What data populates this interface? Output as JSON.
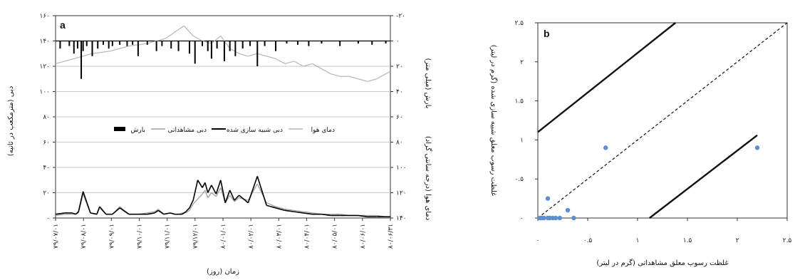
{
  "colors": {
    "observed": "#9e9e9e",
    "simulated": "#000000",
    "temperature": "#b5b5b5",
    "precip": "#000000",
    "scatter_points": "#5b8fd0"
  },
  "chart_data": [
    {
      "type": "line",
      "panel": "a",
      "xlabel": "زمان (روز)",
      "ylabel_left": "دبی (مترمکعب در ثانیه)",
      "ylabel_right": "بارش (میلی متر)",
      "ylabel_right2": "دمای هوا (درجه سانتی گراد)",
      "ylim_left": [
        0,
        140
      ],
      "yticks_left": [
        "۰",
        "۲۰",
        "۴۰",
        "۶۰",
        "۸۰",
        "۱۰۰",
        "۱۲۰",
        "۱۴۰",
        "۱۶۰"
      ],
      "yticks_right": [
        "-۲۰",
        "۰",
        "۲۰",
        "۴۰",
        "۶۰",
        "۸۰",
        "۱۰۰",
        "۱۲۰",
        "۱۴۰"
      ],
      "xticks": [
        "۷۹/۰۷/۰۱",
        "۷۹/۰۸/۰۱",
        "۷۹/۰۹/۰۱",
        "۷۹/۱۰/۰۱",
        "۷۹/۱۱/۰۱",
        "۷۹/۱۲/۰۱",
        "۸۰/۰۱/۰۱",
        "۸۰/۰۲/۰۱",
        "۸۰/۰۳/۰۱",
        "۸۰/۰۴/۰۱",
        "۸۰/۰۵/۰۱",
        "۸۰/۰۶/۰۱",
        "۸۰/۰۶/۳۱"
      ],
      "legend": [
        "بارش",
        "دبی مشاهداتی",
        "دبی شبیه سازی شده",
        "دمای هوا"
      ],
      "series": [
        {
          "name": "دبی مشاهداتی",
          "role": "observed",
          "x": [
            0,
            10,
            18,
            22,
            25,
            30,
            38,
            45,
            48,
            55,
            62,
            70,
            80,
            90,
            100,
            108,
            112,
            118,
            125,
            130,
            135,
            138,
            142,
            146,
            150,
            155,
            160,
            163,
            166,
            170,
            175,
            180,
            185,
            190,
            195,
            200,
            210,
            220,
            230,
            240,
            250,
            260,
            270,
            280,
            290,
            300,
            310,
            320,
            330,
            340,
            350,
            360,
            365
          ],
          "values": [
            2,
            3,
            3,
            3,
            4,
            19,
            4,
            3,
            8,
            3,
            3,
            9,
            3,
            3,
            4,
            5,
            7,
            3,
            4,
            3,
            3,
            4,
            4,
            6,
            11,
            15,
            19,
            22,
            16,
            20,
            17,
            24,
            12,
            18,
            13,
            16,
            14,
            27,
            12,
            9,
            7,
            6,
            5,
            4,
            3,
            3,
            3,
            2,
            2,
            2,
            2,
            1,
            1
          ]
        },
        {
          "name": "دبی شبیه سازی شده",
          "role": "simulated",
          "x": [
            0,
            10,
            18,
            22,
            25,
            30,
            38,
            45,
            48,
            55,
            62,
            70,
            80,
            90,
            100,
            108,
            112,
            118,
            125,
            130,
            135,
            138,
            142,
            146,
            150,
            155,
            160,
            163,
            166,
            170,
            175,
            180,
            185,
            190,
            195,
            200,
            210,
            220,
            230,
            240,
            250,
            260,
            270,
            280,
            290,
            300,
            310,
            320,
            330,
            340,
            350,
            360,
            365
          ],
          "values": [
            3,
            4,
            4,
            3,
            5,
            21,
            4,
            3,
            9,
            3,
            3,
            8,
            3,
            3,
            3,
            4,
            6,
            3,
            4,
            3,
            3,
            3,
            5,
            8,
            14,
            30,
            24,
            28,
            20,
            26,
            19,
            30,
            12,
            22,
            14,
            18,
            12,
            33,
            10,
            8,
            6,
            5,
            4,
            3,
            3,
            2,
            2,
            2,
            2,
            1,
            1,
            1,
            1
          ]
        },
        {
          "name": "دمای هوا",
          "role": "temperature",
          "x": [
            0,
            20,
            40,
            60,
            80,
            100,
            120,
            140,
            150,
            160,
            170,
            180,
            190,
            200,
            210,
            220,
            230,
            240,
            250,
            260,
            270,
            280,
            290,
            300,
            310,
            320,
            330,
            340,
            350,
            360,
            365
          ],
          "values": [
            18,
            14,
            10,
            8,
            4,
            2,
            -2,
            -12,
            -4,
            0,
            2,
            -4,
            6,
            10,
            12,
            10,
            12,
            14,
            18,
            16,
            20,
            18,
            22,
            26,
            28,
            28,
            30,
            32,
            30,
            26,
            24
          ]
        },
        {
          "name": "بارش",
          "role": "precip",
          "x": [
            5,
            15,
            20,
            24,
            28,
            30,
            34,
            40,
            46,
            52,
            58,
            62,
            70,
            78,
            84,
            90,
            100,
            110,
            116,
            126,
            134,
            146,
            152,
            160,
            166,
            170,
            176,
            184,
            190,
            196,
            204,
            212,
            220,
            228,
            240,
            252,
            264,
            276,
            290,
            310,
            330,
            345,
            360
          ],
          "values": [
            6,
            4,
            10,
            6,
            30,
            8,
            4,
            12,
            6,
            3,
            6,
            4,
            3,
            4,
            3,
            12,
            3,
            8,
            4,
            6,
            8,
            10,
            18,
            4,
            8,
            14,
            6,
            16,
            8,
            12,
            6,
            4,
            20,
            4,
            8,
            2,
            3,
            4,
            2,
            4,
            2,
            3,
            2
          ]
        }
      ]
    },
    {
      "type": "scatter",
      "panel": "b",
      "xlabel": "غلظت رسوب معلق مشاهداتی (گرم در لیتر)",
      "ylabel": "غلظت رسوب معلق شبیه سازی شده (گرم در لیتر)",
      "xlim": [
        0,
        2.5
      ],
      "ylim": [
        0,
        2.5
      ],
      "xticks": [
        "۰",
        "۰.۵",
        "۱",
        "۱.۵",
        "۲",
        "۲.۵"
      ],
      "yticks": [
        "۰",
        "۰.۵",
        "۱",
        "۱.۵",
        "۲",
        "۲.۵"
      ],
      "points": [
        {
          "x": 0.02,
          "y": 0.0
        },
        {
          "x": 0.04,
          "y": 0.0
        },
        {
          "x": 0.06,
          "y": 0.0
        },
        {
          "x": 0.1,
          "y": 0.0
        },
        {
          "x": 0.12,
          "y": 0.0
        },
        {
          "x": 0.15,
          "y": 0.0
        },
        {
          "x": 0.18,
          "y": 0.0
        },
        {
          "x": 0.22,
          "y": 0.0
        },
        {
          "x": 0.36,
          "y": 0.0
        },
        {
          "x": 0.3,
          "y": 0.1
        },
        {
          "x": 0.1,
          "y": 0.25
        },
        {
          "x": 0.68,
          "y": 0.9
        },
        {
          "x": 2.2,
          "y": 0.9
        }
      ],
      "lines": [
        {
          "role": "1:1",
          "style": "dashed",
          "x": [
            0,
            2.5
          ],
          "y": [
            0,
            2.5
          ]
        },
        {
          "role": "upper",
          "style": "solid",
          "x": [
            0,
            1.38
          ],
          "y": [
            1.1,
            2.5
          ]
        },
        {
          "role": "lower",
          "style": "solid",
          "x": [
            1.12,
            2.2
          ],
          "y": [
            0,
            1.06
          ]
        }
      ]
    }
  ]
}
